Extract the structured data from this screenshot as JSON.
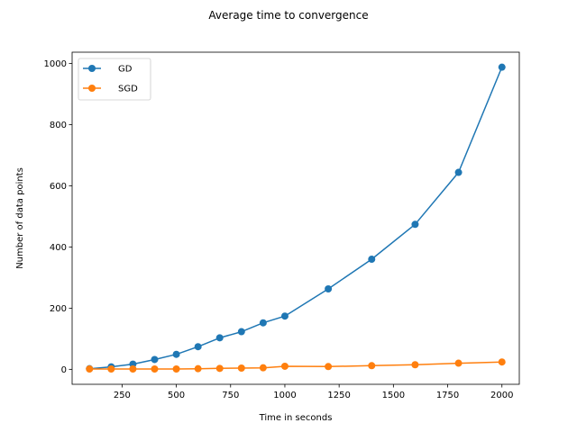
{
  "chart_data": {
    "type": "line",
    "title": "Average time to convergence",
    "xlabel": "Time in seconds",
    "ylabel": "Number of data points",
    "xlim": [
      20,
      2080
    ],
    "ylim": [
      -49,
      1037
    ],
    "xticks": [
      250,
      500,
      750,
      1000,
      1250,
      1500,
      1750,
      2000
    ],
    "yticks": [
      0,
      200,
      400,
      600,
      800,
      1000
    ],
    "grid": false,
    "legend_position": "top-left",
    "series": [
      {
        "name": "GD",
        "color": "#1f77b4",
        "marker": "circle",
        "x": [
          100,
          200,
          300,
          400,
          500,
          600,
          700,
          800,
          900,
          1000,
          1200,
          1400,
          1600,
          1800,
          2000
        ],
        "y": [
          2,
          8,
          17,
          32,
          49,
          74,
          103,
          123,
          152,
          174,
          263,
          360,
          474,
          644,
          988
        ]
      },
      {
        "name": "SGD",
        "color": "#ff7f0e",
        "marker": "circle",
        "x": [
          100,
          200,
          300,
          400,
          500,
          600,
          700,
          800,
          900,
          1000,
          1200,
          1400,
          1600,
          1800,
          2000
        ],
        "y": [
          1,
          1,
          1,
          1,
          1,
          2,
          3,
          4,
          5,
          10,
          9,
          12,
          15,
          20,
          24
        ]
      }
    ]
  }
}
